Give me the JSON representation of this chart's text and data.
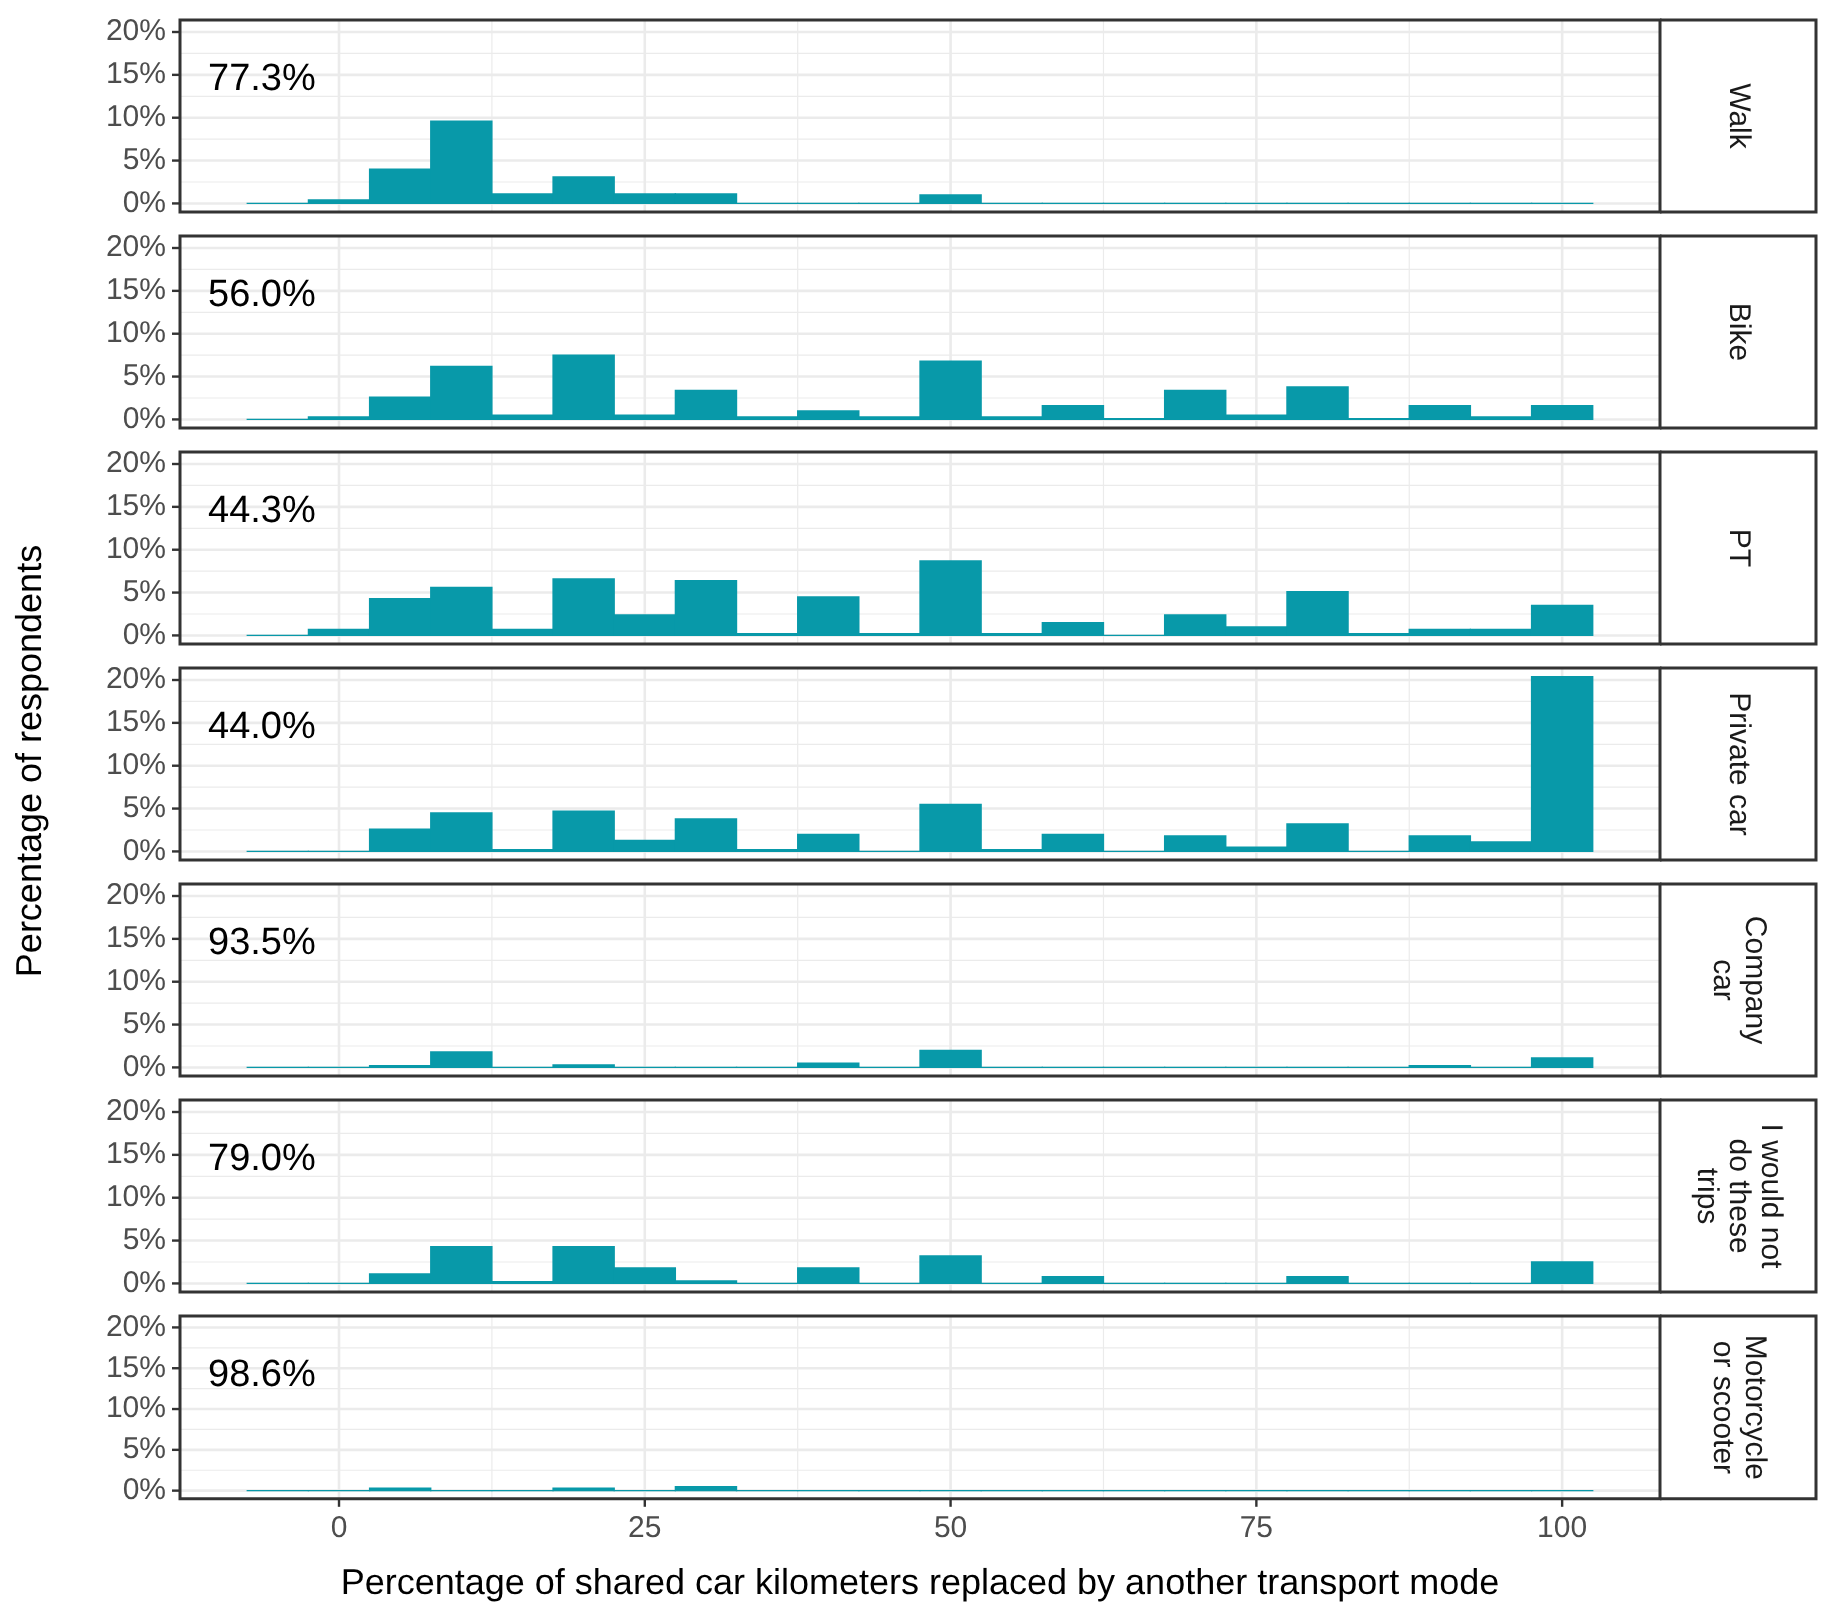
{
  "chart_data": [
    {
      "type": "histogram",
      "annotations": [
        "77.3%",
        "Walk"
      ],
      "bins": [
        -7.5,
        -2.5,
        2.5,
        7.5,
        12.5,
        17.5,
        22.5,
        27.5,
        32.5,
        37.5,
        42.5,
        47.5,
        52.5,
        57.5,
        62.5,
        67.5,
        72.5,
        77.5,
        82.5,
        87.5,
        92.5,
        97.5,
        102.5
      ],
      "values": [
        0,
        0.4,
        4.0,
        9.6,
        1.1,
        3.1,
        1.1,
        1.1,
        0,
        0,
        0,
        1.0,
        0,
        0,
        0,
        0,
        0,
        0,
        0,
        0,
        0,
        0
      ],
      "color": "#0899a9",
      "xlim": [
        -13,
        108
      ],
      "ylim": [
        -1,
        21.4
      ],
      "xticks": [
        0,
        {
          "value": 12.5,
          "label": null
        },
        25,
        {
          "value": 37.5,
          "label": null
        },
        50,
        {
          "value": 62.5,
          "label": null
        },
        75,
        {
          "value": 87.5,
          "label": null
        },
        100
      ],
      "yticks": [
        {
          "value": 0,
          "label": "0%"
        },
        {
          "value": 2.5,
          "label": null
        },
        {
          "value": 5,
          "label": "5%"
        },
        {
          "value": 7.5,
          "label": null
        },
        {
          "value": 10,
          "label": "10%"
        },
        {
          "value": 12.5,
          "label": null
        },
        {
          "value": 15,
          "label": "15%"
        },
        {
          "value": 17.5,
          "label": null
        },
        {
          "value": 20,
          "label": "20%"
        }
      ],
      "grid": true,
      "tick_labels": "y"
    },
    {
      "type": "histogram",
      "annotations": [
        "56.0%",
        "Bike"
      ],
      "bins": [
        -7.5,
        -2.5,
        2.5,
        7.5,
        12.5,
        17.5,
        22.5,
        27.5,
        32.5,
        37.5,
        42.5,
        47.5,
        52.5,
        57.5,
        62.5,
        67.5,
        72.5,
        77.5,
        82.5,
        87.5,
        92.5,
        97.5,
        102.5
      ],
      "values": [
        0,
        0.3,
        2.6,
        6.2,
        0.5,
        7.5,
        0.5,
        3.4,
        0.3,
        1.0,
        0.3,
        6.8,
        0.3,
        1.6,
        0.1,
        3.4,
        0.5,
        3.8,
        0.1,
        1.6,
        0.3,
        1.6
      ],
      "color": "#0899a9",
      "xlim": [
        -13,
        108
      ],
      "ylim": [
        -1,
        21.4
      ],
      "xticks": [
        0,
        {
          "value": 12.5,
          "label": null
        },
        25,
        {
          "value": 37.5,
          "label": null
        },
        50,
        {
          "value": 62.5,
          "label": null
        },
        75,
        {
          "value": 87.5,
          "label": null
        },
        100
      ],
      "yticks": [
        {
          "value": 0,
          "label": "0%"
        },
        {
          "value": 2.5,
          "label": null
        },
        {
          "value": 5,
          "label": "5%"
        },
        {
          "value": 7.5,
          "label": null
        },
        {
          "value": 10,
          "label": "10%"
        },
        {
          "value": 12.5,
          "label": null
        },
        {
          "value": 15,
          "label": "15%"
        },
        {
          "value": 17.5,
          "label": null
        },
        {
          "value": 20,
          "label": "20%"
        }
      ],
      "grid": true,
      "tick_labels": "y"
    },
    {
      "type": "histogram",
      "annotations": [
        "44.3%",
        "PT"
      ],
      "bins": [
        -7.5,
        -2.5,
        2.5,
        7.5,
        12.5,
        17.5,
        22.5,
        27.5,
        32.5,
        37.5,
        42.5,
        47.5,
        52.5,
        57.5,
        62.5,
        67.5,
        72.5,
        77.5,
        82.5,
        87.5,
        92.5,
        97.5,
        102.5
      ],
      "values": [
        0,
        0.7,
        4.3,
        5.6,
        0.7,
        6.6,
        2.4,
        6.4,
        0.2,
        4.5,
        0.2,
        8.7,
        0.2,
        1.5,
        0,
        2.4,
        1.0,
        5.1,
        0.2,
        0.7,
        0.7,
        3.5
      ],
      "color": "#0899a9",
      "xlim": [
        -13,
        108
      ],
      "ylim": [
        -1,
        21.4
      ],
      "xticks": [
        0,
        {
          "value": 12.5,
          "label": null
        },
        25,
        {
          "value": 37.5,
          "label": null
        },
        50,
        {
          "value": 62.5,
          "label": null
        },
        75,
        {
          "value": 87.5,
          "label": null
        },
        100
      ],
      "yticks": [
        {
          "value": 0,
          "label": "0%"
        },
        {
          "value": 2.5,
          "label": null
        },
        {
          "value": 5,
          "label": "5%"
        },
        {
          "value": 7.5,
          "label": null
        },
        {
          "value": 10,
          "label": "10%"
        },
        {
          "value": 12.5,
          "label": null
        },
        {
          "value": 15,
          "label": "15%"
        },
        {
          "value": 17.5,
          "label": null
        },
        {
          "value": 20,
          "label": "20%"
        }
      ],
      "grid": true,
      "tick_labels": "y"
    },
    {
      "type": "histogram",
      "ylabel": "Percentage of respondents",
      "annotations": [
        "44.0%",
        "Private car"
      ],
      "bins": [
        -7.5,
        -2.5,
        2.5,
        7.5,
        12.5,
        17.5,
        22.5,
        27.5,
        32.5,
        37.5,
        42.5,
        47.5,
        52.5,
        57.5,
        62.5,
        67.5,
        72.5,
        77.5,
        82.5,
        87.5,
        92.5,
        97.5,
        102.5
      ],
      "values": [
        0,
        0,
        2.6,
        4.5,
        0.2,
        4.7,
        1.3,
        3.8,
        0.2,
        2.0,
        0,
        5.5,
        0.2,
        2.0,
        0,
        1.8,
        0.5,
        3.2,
        0,
        1.8,
        1.1,
        20.4
      ],
      "color": "#0899a9",
      "xlim": [
        -13,
        108
      ],
      "ylim": [
        -1,
        21.4
      ],
      "xticks": [
        0,
        {
          "value": 12.5,
          "label": null
        },
        25,
        {
          "value": 37.5,
          "label": null
        },
        50,
        {
          "value": 62.5,
          "label": null
        },
        75,
        {
          "value": 87.5,
          "label": null
        },
        100
      ],
      "yticks": [
        {
          "value": 0,
          "label": "0%"
        },
        {
          "value": 2.5,
          "label": null
        },
        {
          "value": 5,
          "label": "5%"
        },
        {
          "value": 7.5,
          "label": null
        },
        {
          "value": 10,
          "label": "10%"
        },
        {
          "value": 12.5,
          "label": null
        },
        {
          "value": 15,
          "label": "15%"
        },
        {
          "value": 17.5,
          "label": null
        },
        {
          "value": 20,
          "label": "20%"
        }
      ],
      "grid": true,
      "tick_labels": "y"
    },
    {
      "type": "histogram",
      "annotations": [
        "93.5%",
        "Company car"
      ],
      "bins": [
        -7.5,
        -2.5,
        2.5,
        7.5,
        12.5,
        17.5,
        22.5,
        27.5,
        32.5,
        37.5,
        42.5,
        47.5,
        52.5,
        57.5,
        62.5,
        67.5,
        72.5,
        77.5,
        82.5,
        87.5,
        92.5,
        97.5,
        102.5
      ],
      "values": [
        0,
        0,
        0.2,
        1.8,
        0,
        0.3,
        0,
        0,
        0,
        0.5,
        0,
        2.0,
        0,
        0,
        0,
        0,
        0,
        0,
        0,
        0.2,
        0,
        1.1
      ],
      "color": "#0899a9",
      "xlim": [
        -13,
        108
      ],
      "ylim": [
        -1,
        21.4
      ],
      "xticks": [
        0,
        {
          "value": 12.5,
          "label": null
        },
        25,
        {
          "value": 37.5,
          "label": null
        },
        50,
        {
          "value": 62.5,
          "label": null
        },
        75,
        {
          "value": 87.5,
          "label": null
        },
        100
      ],
      "yticks": [
        {
          "value": 0,
          "label": "0%"
        },
        {
          "value": 2.5,
          "label": null
        },
        {
          "value": 5,
          "label": "5%"
        },
        {
          "value": 7.5,
          "label": null
        },
        {
          "value": 10,
          "label": "10%"
        },
        {
          "value": 12.5,
          "label": null
        },
        {
          "value": 15,
          "label": "15%"
        },
        {
          "value": 17.5,
          "label": null
        },
        {
          "value": 20,
          "label": "20%"
        }
      ],
      "grid": true,
      "tick_labels": "y"
    },
    {
      "type": "histogram",
      "annotations": [
        "79.0%",
        "I would not do these trips"
      ],
      "bins": [
        -7.5,
        -2.5,
        2.5,
        7.5,
        12.5,
        17.5,
        22.5,
        27.5,
        32.5,
        37.5,
        42.5,
        47.5,
        52.5,
        57.5,
        62.5,
        67.5,
        72.5,
        77.5,
        82.5,
        87.5,
        92.5,
        97.5,
        102.5
      ],
      "values": [
        0,
        0,
        1.1,
        4.3,
        0.2,
        4.3,
        1.8,
        0.3,
        0,
        1.8,
        0,
        3.2,
        0,
        0.8,
        0,
        0,
        0,
        0.8,
        0,
        0,
        0,
        2.5
      ],
      "color": "#0899a9",
      "xlim": [
        -13,
        108
      ],
      "ylim": [
        -1,
        21.4
      ],
      "xticks": [
        0,
        {
          "value": 12.5,
          "label": null
        },
        25,
        {
          "value": 37.5,
          "label": null
        },
        50,
        {
          "value": 62.5,
          "label": null
        },
        75,
        {
          "value": 87.5,
          "label": null
        },
        100
      ],
      "yticks": [
        {
          "value": 0,
          "label": "0%"
        },
        {
          "value": 2.5,
          "label": null
        },
        {
          "value": 5,
          "label": "5%"
        },
        {
          "value": 7.5,
          "label": null
        },
        {
          "value": 10,
          "label": "10%"
        },
        {
          "value": 12.5,
          "label": null
        },
        {
          "value": 15,
          "label": "15%"
        },
        {
          "value": 17.5,
          "label": null
        },
        {
          "value": 20,
          "label": "20%"
        }
      ],
      "grid": true,
      "tick_labels": "y"
    },
    {
      "type": "histogram",
      "xlabel": "Percentage of shared car kilometers replaced by another transport mode",
      "annotations": [
        "98.6%",
        "Motorcycle or scooter"
      ],
      "bins": [
        -7.5,
        -2.5,
        2.5,
        7.5,
        12.5,
        17.5,
        22.5,
        27.5,
        32.5,
        37.5,
        42.5,
        47.5,
        52.5,
        57.5,
        62.5,
        67.5,
        72.5,
        77.5,
        82.5,
        87.5,
        92.5,
        97.5,
        102.5
      ],
      "values": [
        0,
        0,
        0.3,
        0,
        0,
        0.3,
        0,
        0.5,
        0,
        0,
        0,
        0,
        0,
        0,
        0,
        0,
        0,
        0,
        0,
        0,
        0,
        0
      ],
      "color": "#0899a9",
      "xlim": [
        -13,
        108
      ],
      "ylim": [
        -1,
        21.4
      ],
      "xticks": [
        0,
        {
          "value": 12.5,
          "label": null
        },
        25,
        {
          "value": 37.5,
          "label": null
        },
        50,
        {
          "value": 62.5,
          "label": null
        },
        75,
        {
          "value": 87.5,
          "label": null
        },
        100
      ],
      "yticks": [
        {
          "value": 0,
          "label": "0%"
        },
        {
          "value": 2.5,
          "label": null
        },
        {
          "value": 5,
          "label": "5%"
        },
        {
          "value": 7.5,
          "label": null
        },
        {
          "value": 10,
          "label": "10%"
        },
        {
          "value": 12.5,
          "label": null
        },
        {
          "value": 15,
          "label": "15%"
        },
        {
          "value": 17.5,
          "label": null
        },
        {
          "value": 20,
          "label": "20%"
        }
      ],
      "grid": true
    }
  ]
}
